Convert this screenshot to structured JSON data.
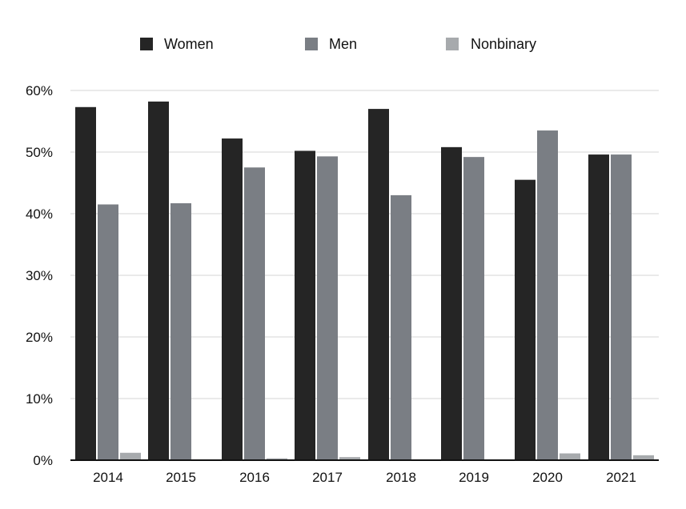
{
  "chart_data": {
    "type": "bar",
    "title": "",
    "xlabel": "",
    "ylabel": "",
    "categories": [
      "2014",
      "2015",
      "2016",
      "2017",
      "2018",
      "2019",
      "2020",
      "2021"
    ],
    "series": [
      {
        "name": "Women",
        "color": "#252525",
        "values": [
          57.3,
          58.2,
          52.2,
          50.2,
          57.0,
          50.8,
          45.5,
          49.6
        ]
      },
      {
        "name": "Men",
        "color": "#7a7e84",
        "values": [
          41.5,
          41.7,
          47.5,
          49.3,
          43.0,
          49.2,
          53.5,
          49.6
        ]
      },
      {
        "name": "Nonbinary",
        "color": "#a7aaad",
        "values": [
          1.2,
          0,
          0.3,
          0.5,
          0,
          0,
          1.1,
          0.8
        ]
      }
    ],
    "ylim": [
      0,
      60
    ],
    "yticks": [
      0,
      10,
      20,
      30,
      40,
      50,
      60
    ],
    "ytick_labels": [
      "0%",
      "10%",
      "20%",
      "30%",
      "40%",
      "50%",
      "60%"
    ],
    "grid": true,
    "legend_position": "top-center",
    "gridline_color": "#d4d4d4",
    "axis_color": "#111111"
  }
}
